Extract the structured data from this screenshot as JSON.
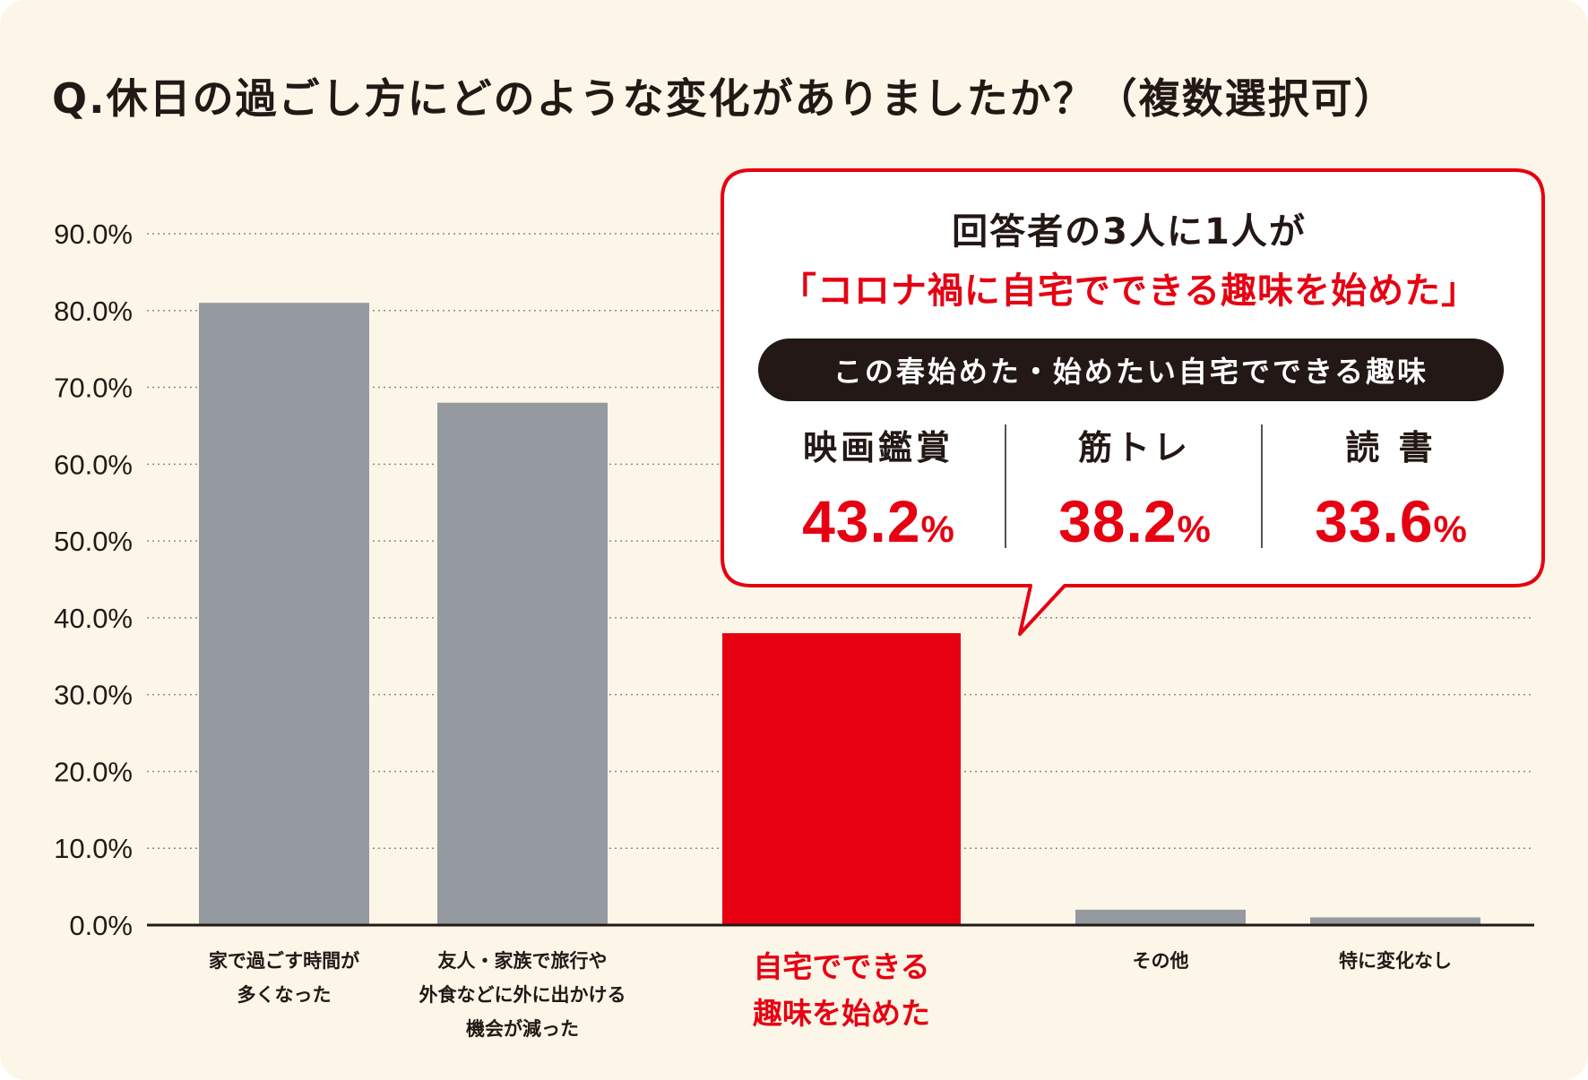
{
  "title": "Q.休日の過ごし方にどのような変化がありましたか？（複数選択可）",
  "colors": {
    "background": "#fcf6e8",
    "bar_default": "#949a9f",
    "bar_highlight": "#e60012",
    "text": "#231815",
    "accent": "#e60012"
  },
  "chart_data": {
    "type": "bar",
    "title": "Q.休日の過ごし方にどのような変化がありましたか？（複数選択可）",
    "categories": [
      [
        "家で過ごす時間が",
        "多くなった"
      ],
      [
        "友人・家族で旅行や",
        "外食などに外に出かける",
        "機会が減った"
      ],
      [
        "自宅でできる",
        "趣味を始めた"
      ],
      [
        "その他"
      ],
      [
        "特に変化なし"
      ]
    ],
    "values": [
      81.0,
      68.0,
      38.0,
      2.0,
      1.0
    ],
    "highlight_index": 2,
    "ylim": [
      0,
      90
    ],
    "yticks": [
      0,
      10,
      20,
      30,
      40,
      50,
      60,
      70,
      80,
      90
    ],
    "ytick_labels": [
      "0.0%",
      "10.0%",
      "20.0%",
      "30.0%",
      "40.0%",
      "50.0%",
      "60.0%",
      "70.0%",
      "80.0%",
      "90.0%"
    ],
    "grid": "dotted-horizontal",
    "xlabel": "",
    "ylabel": ""
  },
  "callout": {
    "headline_1": "回答者の3人に1人が",
    "headline_2": "「コロナ禍に自宅でできる趣味を始めた」",
    "pill_label": "この春始めた・始めたい自宅でできる趣味",
    "hobbies": [
      {
        "name": "映画鑑賞",
        "value": "43.2",
        "unit": "%"
      },
      {
        "name": "筋トレ",
        "value": "38.2",
        "unit": "%"
      },
      {
        "name": "読 書",
        "value": "33.6",
        "unit": "%"
      }
    ]
  }
}
